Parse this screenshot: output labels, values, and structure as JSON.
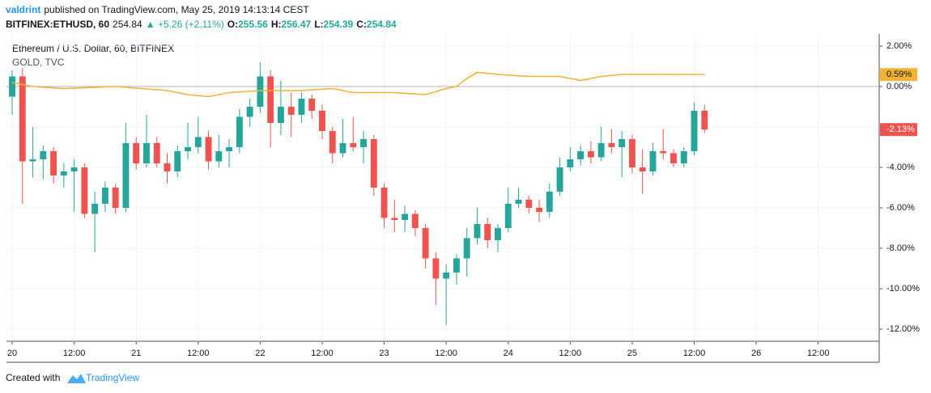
{
  "header": {
    "author": "valdrint",
    "published": "published on TradingView.com, May 25, 2019 14:13:14 CEST",
    "symbol": "BITFINEX:ETHUSD, 60",
    "last": 254.84,
    "change": "▲ +5.26 (+2.11%)",
    "ohlc": [
      {
        "label": "O:",
        "value": 255.56
      },
      {
        "label": "H:",
        "value": 256.47
      },
      {
        "label": "L:",
        "value": 254.39
      },
      {
        "label": "C:",
        "value": 254.84
      }
    ]
  },
  "chart_data": {
    "type": "candlestick",
    "legend": [
      "Ethereum / U.S. Dollar, 60, BITFINEX",
      "GOLD, TVC"
    ],
    "x": [
      0,
      2,
      4,
      6,
      8,
      10,
      12,
      14,
      16,
      18,
      20,
      22,
      24,
      26,
      28,
      30,
      32,
      34,
      36,
      38,
      40,
      42,
      44,
      46,
      48,
      50,
      52,
      54,
      56,
      58,
      60,
      62,
      64,
      66,
      68,
      70,
      72,
      74,
      76,
      78,
      80,
      82,
      84,
      86,
      88,
      90,
      92,
      94,
      96,
      98,
      100,
      102,
      104,
      106,
      108,
      110,
      112,
      114,
      116,
      118,
      120,
      122,
      124,
      126,
      128,
      130,
      132,
      134
    ],
    "open": [
      -0.5,
      0.5,
      -3.7,
      -3.6,
      -3.2,
      -4.4,
      -4.2,
      -4.0,
      -6.3,
      -5.8,
      -5.0,
      -6.0,
      -2.8,
      -3.8,
      -2.8,
      -3.8,
      -4.2,
      -3.2,
      -3.0,
      -2.5,
      -3.7,
      -3.2,
      -3.0,
      -1.5,
      -1.0,
      0.5,
      -1.8,
      -1.0,
      -1.4,
      -0.6,
      -1.2,
      -2.2,
      -3.3,
      -2.8,
      -3.0,
      -2.6,
      -5.0,
      -6.5,
      -6.6,
      -6.3,
      -7.0,
      -8.5,
      -9.5,
      -9.2,
      -8.5,
      -7.5,
      -6.8,
      -7.6,
      -7.0,
      -5.8,
      -5.6,
      -6.0,
      -6.2,
      -5.2,
      -4.0,
      -3.6,
      -3.2,
      -3.5,
      -2.8,
      -3.0,
      -2.6,
      -4.0,
      -4.2,
      -3.2,
      -3.3,
      -3.8,
      -3.2,
      -1.2
    ],
    "high": [
      0.8,
      0.9,
      -2.0,
      -2.9,
      -3.0,
      -3.8,
      -3.6,
      -3.8,
      -5.2,
      -4.7,
      -4.8,
      -1.8,
      -2.5,
      -1.4,
      -2.5,
      -3.3,
      -2.9,
      -1.8,
      -1.5,
      -2.2,
      -2.4,
      -2.6,
      -1.1,
      -0.6,
      1.2,
      0.8,
      0.3,
      -0.3,
      -0.3,
      -0.4,
      -0.9,
      -2.0,
      -1.6,
      -1.5,
      -2.2,
      -2.4,
      -4.8,
      -5.6,
      -5.9,
      -6.1,
      -6.8,
      -8.2,
      -8.8,
      -8.3,
      -7.0,
      -6.0,
      -6.5,
      -6.8,
      -5.0,
      -5.0,
      -5.4,
      -5.6,
      -4.8,
      -3.5,
      -3.0,
      -2.9,
      -2.7,
      -2.0,
      -2.1,
      -2.2,
      -2.4,
      -3.1,
      -2.8,
      -2.1,
      -3.1,
      -3.0,
      -0.8,
      -0.9
    ],
    "low": [
      -1.4,
      -5.8,
      -4.5,
      -4.6,
      -4.8,
      -5.0,
      -6.2,
      -6.5,
      -8.2,
      -6.2,
      -6.3,
      -6.2,
      -4.1,
      -4.0,
      -4.0,
      -4.8,
      -4.5,
      -3.6,
      -3.3,
      -4.1,
      -4.0,
      -4.0,
      -3.3,
      -2.0,
      -1.3,
      -3.0,
      -2.4,
      -2.5,
      -1.8,
      -1.6,
      -2.6,
      -3.8,
      -3.5,
      -3.2,
      -3.8,
      -5.4,
      -7.0,
      -7.2,
      -7.2,
      -7.4,
      -9.0,
      -10.8,
      -11.8,
      -9.8,
      -9.4,
      -7.8,
      -8.0,
      -8.2,
      -7.2,
      -6.0,
      -6.3,
      -6.7,
      -6.5,
      -5.4,
      -4.2,
      -3.9,
      -3.8,
      -3.7,
      -3.3,
      -4.5,
      -4.3,
      -5.3,
      -4.4,
      -3.6,
      -4.0,
      -4.0,
      -3.4,
      -2.3
    ],
    "close": [
      0.5,
      -3.7,
      -3.6,
      -3.2,
      -4.4,
      -4.2,
      -4.0,
      -6.3,
      -5.8,
      -5.0,
      -6.0,
      -2.8,
      -3.8,
      -2.8,
      -3.8,
      -4.2,
      -3.2,
      -3.0,
      -2.5,
      -3.7,
      -3.2,
      -3.0,
      -1.5,
      -1.0,
      0.5,
      -1.8,
      -1.0,
      -1.4,
      -0.6,
      -1.2,
      -2.2,
      -3.3,
      -2.8,
      -3.0,
      -2.6,
      -5.0,
      -6.5,
      -6.6,
      -6.3,
      -7.0,
      -8.5,
      -9.5,
      -9.2,
      -8.5,
      -7.5,
      -6.8,
      -7.6,
      -7.0,
      -5.8,
      -5.6,
      -6.0,
      -6.2,
      -5.2,
      -4.0,
      -3.6,
      -3.2,
      -3.5,
      -2.8,
      -3.0,
      -2.6,
      -4.0,
      -4.2,
      -3.2,
      -3.3,
      -3.8,
      -3.2,
      -1.2,
      -2.13
    ],
    "up_color": "#26a69a",
    "down_color": "#ef5350",
    "series": [
      {
        "name": "GOLD, TVC",
        "color": "#f2b233",
        "x": [
          0,
          4,
          10,
          20,
          30,
          34,
          38,
          42,
          48,
          56,
          62,
          66,
          74,
          80,
          84,
          86,
          88,
          90,
          94,
          100,
          106,
          110,
          114,
          118,
          122,
          134
        ],
        "values": [
          0.2,
          0.0,
          -0.1,
          0.0,
          -0.2,
          -0.4,
          -0.5,
          -0.3,
          -0.2,
          -0.2,
          -0.1,
          -0.3,
          -0.3,
          -0.4,
          -0.1,
          0.0,
          0.4,
          0.7,
          0.6,
          0.5,
          0.5,
          0.3,
          0.5,
          0.6,
          0.6,
          0.59
        ]
      }
    ],
    "baseline": 0,
    "price_tags": [
      {
        "value": 0.59,
        "label": "0.59%",
        "color": "#f2b233"
      },
      {
        "value": -2.13,
        "label": "-2.13%",
        "color": "#ef5350"
      }
    ],
    "xlim": [
      -1.1,
      167.8
    ],
    "xticks": [
      {
        "value": 0,
        "label": "20"
      },
      {
        "value": 12,
        "label": "12:00"
      },
      {
        "value": 24,
        "label": "21"
      },
      {
        "value": 36,
        "label": "12:00"
      },
      {
        "value": 48,
        "label": "22"
      },
      {
        "value": 60,
        "label": "12:00"
      },
      {
        "value": 72,
        "label": "23"
      },
      {
        "value": 84,
        "label": "12:00"
      },
      {
        "value": 96,
        "label": "24"
      },
      {
        "value": 108,
        "label": "12:00"
      },
      {
        "value": 120,
        "label": "25"
      },
      {
        "value": 132,
        "label": "12:00"
      },
      {
        "value": 144,
        "label": "26"
      },
      {
        "value": 156,
        "label": "12:00"
      }
    ],
    "ylim": [
      -12.6,
      2.6
    ],
    "yticks": [
      {
        "value": 2,
        "label": "2.00%"
      },
      {
        "value": 0,
        "label": "0.00%"
      },
      {
        "value": -2,
        "label": "-2.00%"
      },
      {
        "value": -4,
        "label": "-4.00%"
      },
      {
        "value": -6,
        "label": "-6.00%"
      },
      {
        "value": -8,
        "label": "-8.00%"
      },
      {
        "value": -10,
        "label": "-10.00%"
      },
      {
        "value": -12,
        "label": "-12.00%"
      }
    ],
    "grid": true
  },
  "footer": {
    "created": "Created with",
    "brand": "TradingView"
  }
}
